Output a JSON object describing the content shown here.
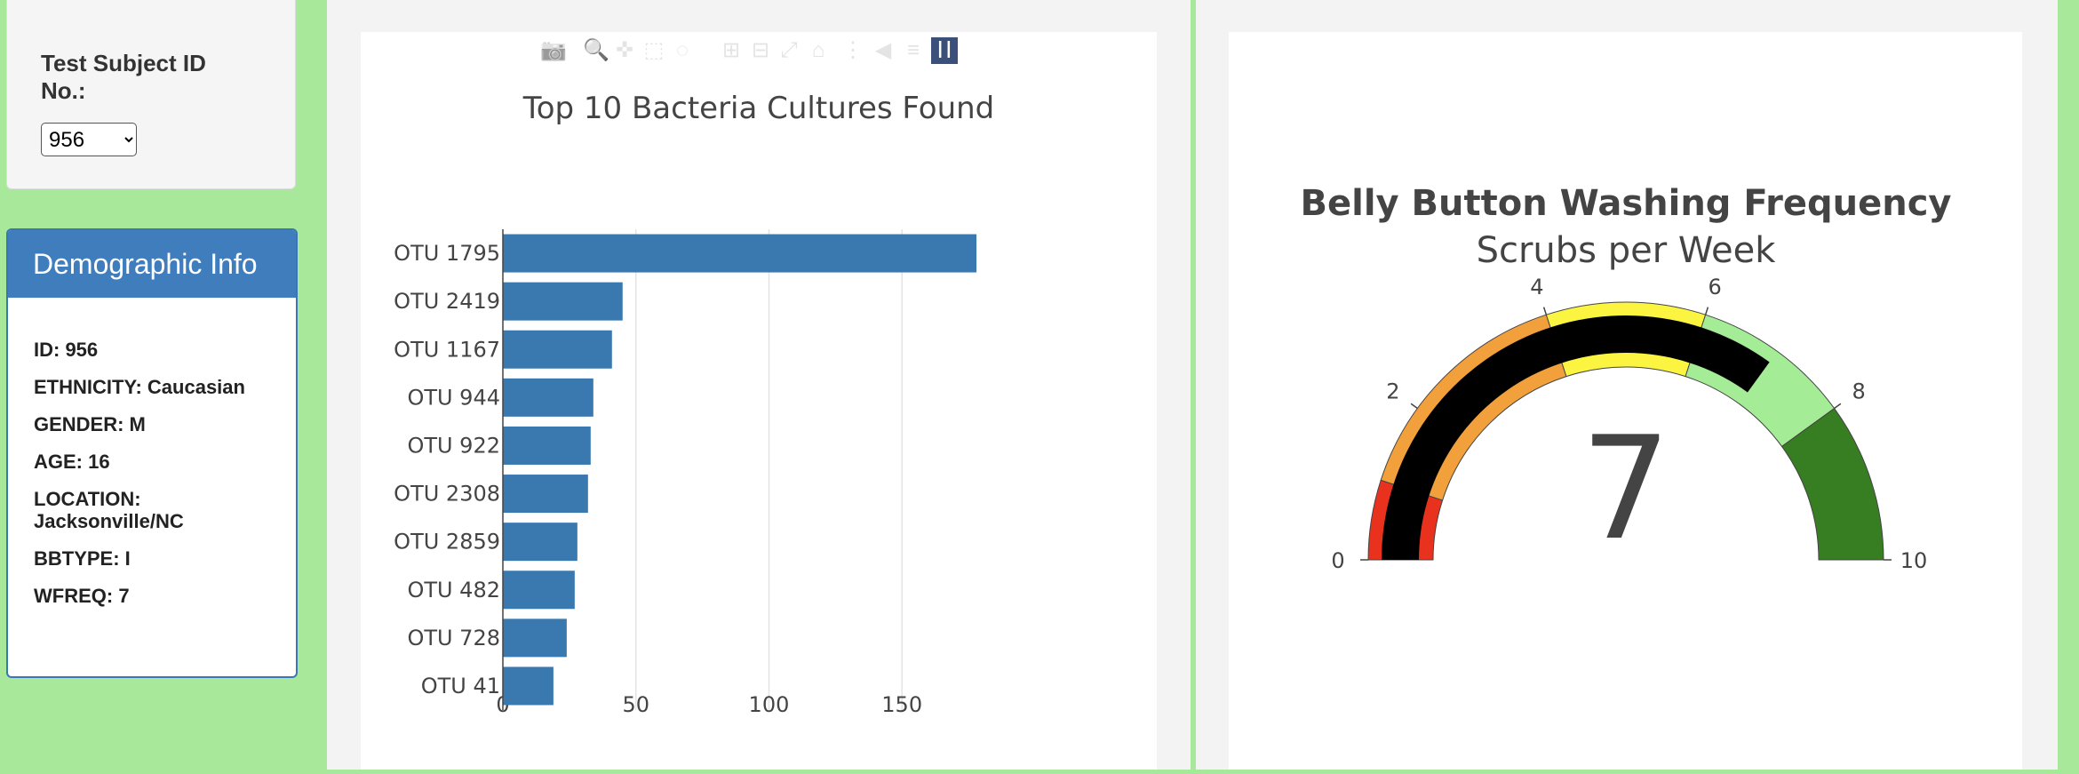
{
  "selector": {
    "label": "Test Subject ID No.:",
    "selected": "956"
  },
  "demographics": {
    "title": "Demographic Info",
    "lines": [
      "ID: 956",
      "ETHNICITY: Caucasian",
      "GENDER: M",
      "AGE: 16",
      "LOCATION: Jacksonville/NC",
      "BBTYPE: I",
      "WFREQ: 7"
    ]
  },
  "modebar": {
    "icons": [
      "camera-icon",
      "zoom-icon",
      "pan-icon",
      "box-select-icon",
      "lasso-select-icon",
      "zoom-in-icon",
      "zoom-out-icon",
      "autoscale-icon",
      "reset-axes-icon",
      "spike-lines-icon",
      "hover-closest-icon",
      "hover-compare-icon",
      "plotly-logo-icon"
    ]
  },
  "colors": {
    "bar": "#3a78b0",
    "gauge_bar": "#000000",
    "steps": [
      "#e8321e",
      "#f2a03c",
      "#fbf541",
      "#a4ec96",
      "#377d22"
    ]
  },
  "chart_data": [
    {
      "type": "bar",
      "orientation": "horizontal",
      "title": "Top 10 Bacteria Cultures Found",
      "categories": [
        "OTU 1795",
        "OTU 2419",
        "OTU 1167",
        "OTU 944",
        "OTU 922",
        "OTU 2308",
        "OTU 2859",
        "OTU 482",
        "OTU 728",
        "OTU 41"
      ],
      "values": [
        178,
        45,
        41,
        34,
        33,
        32,
        28,
        27,
        24,
        19
      ],
      "xticks": [
        0,
        50,
        100,
        150
      ],
      "xlim": [
        0,
        187
      ],
      "grid": true
    },
    {
      "type": "gauge",
      "title": "Belly Button Washing Frequency",
      "subtitle": "Scrubs per Week",
      "value": 7,
      "range": [
        0,
        10
      ],
      "ticks": [
        0,
        2,
        4,
        6,
        8,
        10
      ],
      "steps": [
        [
          0,
          1
        ],
        [
          1,
          4
        ],
        [
          4,
          6
        ],
        [
          6,
          8
        ],
        [
          8,
          10
        ]
      ]
    }
  ]
}
